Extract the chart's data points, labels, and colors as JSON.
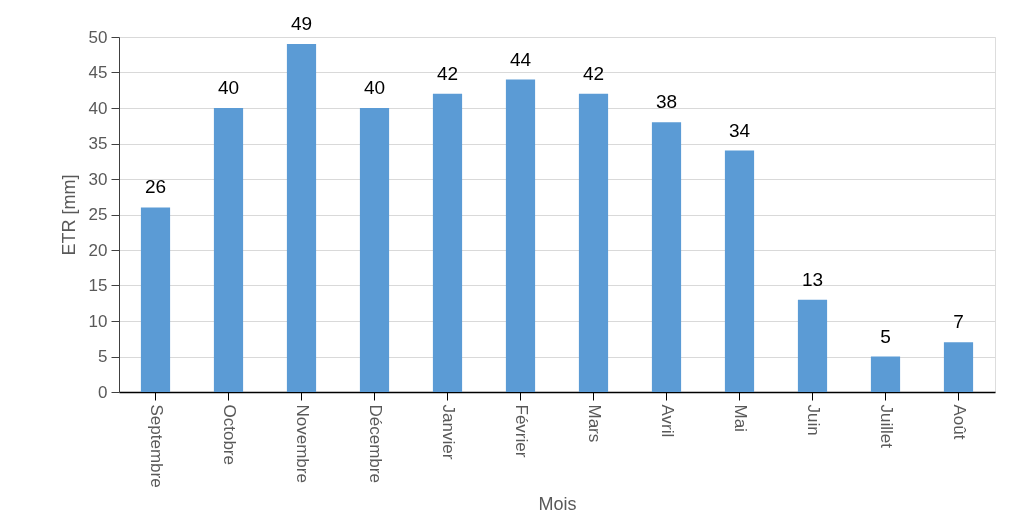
{
  "chart_data": {
    "type": "bar",
    "xlabel": "Mois",
    "ylabel": "ETR [mm]",
    "categories": [
      "Septembre",
      "Octobre",
      "Novembre",
      "Décembre",
      "Janvier",
      "Février",
      "Mars",
      "Avril",
      "Mai",
      "Juin",
      "Juillet",
      "Août"
    ],
    "values": [
      26,
      40,
      49,
      40,
      42,
      44,
      42,
      38,
      34,
      13,
      5,
      7
    ],
    "color": "#5b9bd5",
    "ylim": [
      0,
      50
    ],
    "yticks": [
      0,
      5,
      10,
      15,
      20,
      25,
      30,
      35,
      40,
      45,
      50
    ],
    "grid": "y",
    "data_labels": true
  }
}
